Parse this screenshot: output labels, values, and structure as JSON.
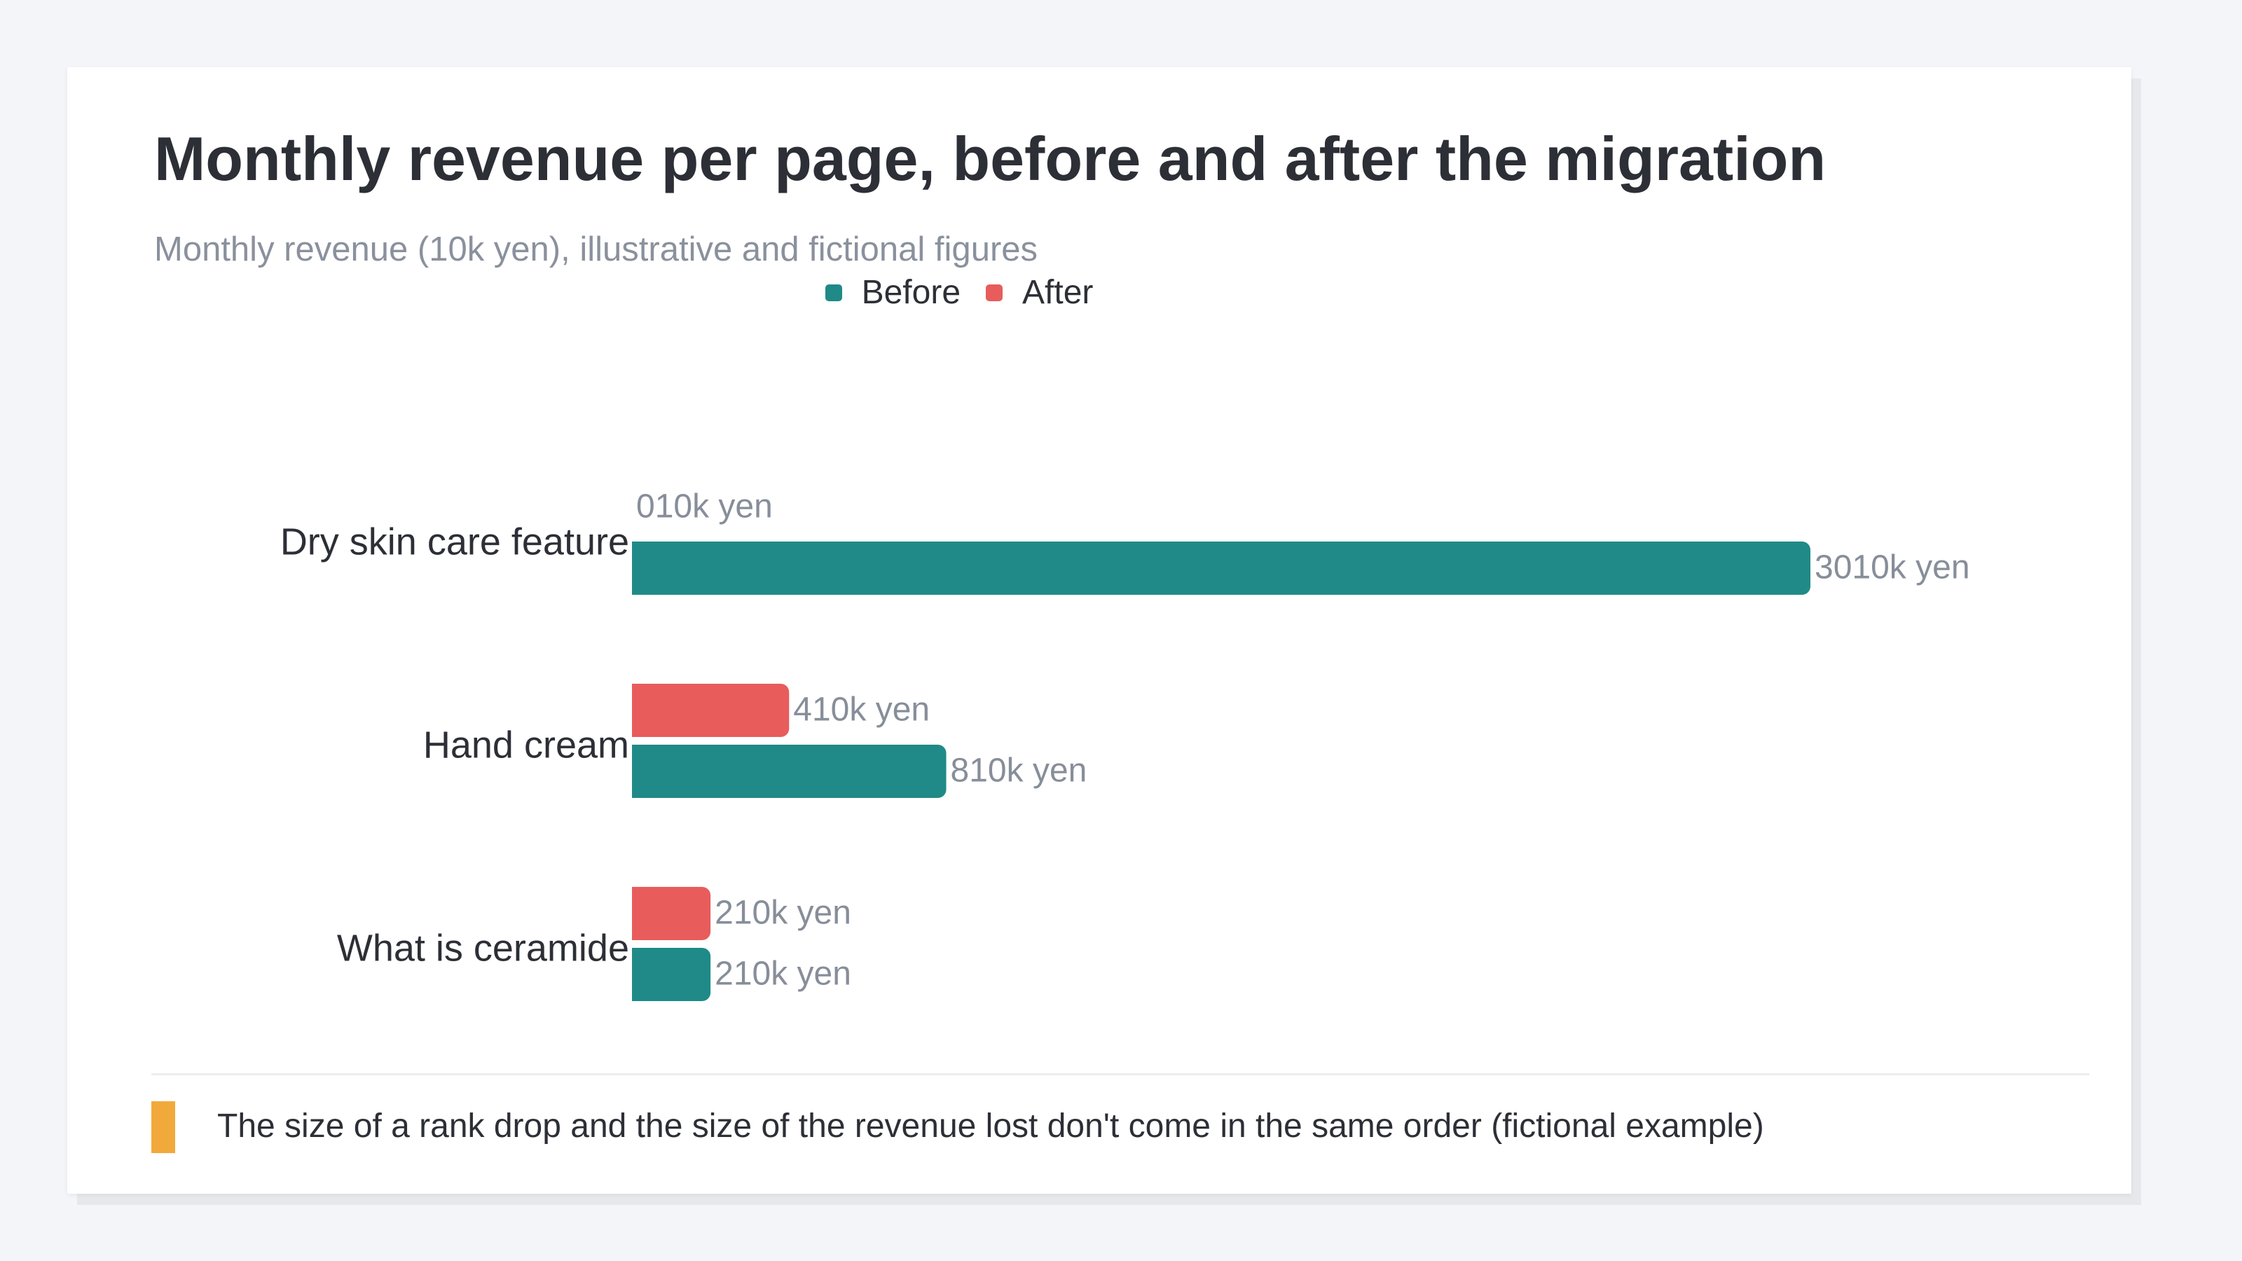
{
  "title": "Monthly revenue per page, before and after the migration",
  "subtitle": "Monthly revenue (10k yen), illustrative and fictional figures",
  "note": "The size of a rank drop and the size of the revenue lost don't come in the same order (fictional example)",
  "colors": {
    "before": "#1f8a87",
    "after": "#e85c5c",
    "accent": "#f2a93b"
  },
  "chart_data": {
    "type": "bar",
    "orientation": "horizontal",
    "categories": [
      "Dry skin care feature",
      "Hand cream",
      "What is ceramide"
    ],
    "series": [
      {
        "name": "After",
        "values": [
          0,
          4,
          2
        ]
      },
      {
        "name": "Before",
        "values": [
          30,
          8,
          2
        ]
      }
    ],
    "value_labels": {
      "After": [
        "010k yen",
        "410k yen",
        "210k yen"
      ],
      "Before": [
        "3010k yen",
        "810k yen",
        "210k yen"
      ]
    },
    "legend": [
      "Before",
      "After"
    ],
    "legend_position": "top-center",
    "xlim": [
      0,
      30
    ],
    "grid": false
  }
}
